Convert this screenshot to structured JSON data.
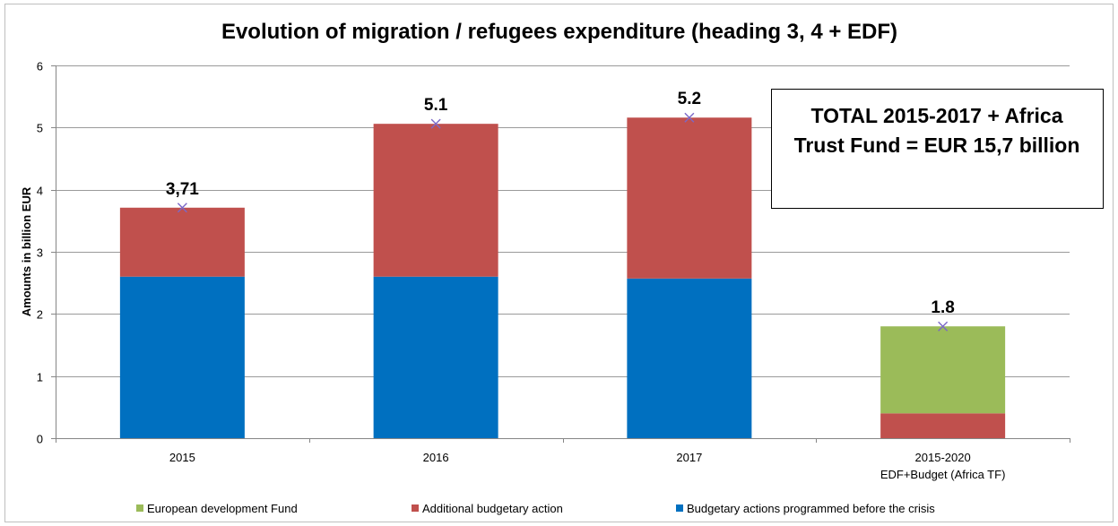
{
  "chart_data": {
    "type": "bar",
    "stacked": true,
    "title": "Evolution of migration / refugees expenditure (heading 3, 4 + EDF)",
    "ylabel": "Amounts in billion EUR",
    "xlabel": "",
    "ylim": [
      0,
      6
    ],
    "yticks": [
      "0",
      "1",
      "2",
      "3",
      "4",
      "5",
      "6"
    ],
    "grid": true,
    "legend_position": "bottom",
    "categories": [
      "2015",
      "2016",
      "2017",
      "2015-2020"
    ],
    "category_sublabels": [
      "",
      "",
      "",
      "EDF+Budget (Africa TF)"
    ],
    "series": [
      {
        "name": "Budgetary actions programmed before the crisis",
        "color": "#0070C0",
        "values": [
          2.6,
          2.6,
          2.57,
          0
        ]
      },
      {
        "name": "Additional budgetary action",
        "color": "#C0504D",
        "values": [
          1.11,
          2.46,
          2.59,
          0.4
        ]
      },
      {
        "name": "European development Fund",
        "color": "#9BBB59",
        "values": [
          0,
          0,
          0,
          1.4
        ]
      }
    ],
    "totals": [
      3.71,
      5.06,
      5.16,
      1.8
    ],
    "data_labels": [
      "3,71",
      "5.1",
      "5.2",
      "1.8"
    ],
    "legend_order": [
      "European development Fund",
      "Additional budgetary action",
      "Budgetary actions programmed before the crisis"
    ],
    "annotation": {
      "line1": "TOTAL 2015-2017 + Africa",
      "line2": "Trust Fund = EUR 15,7 billion"
    },
    "marker_color": "#7B68C8"
  }
}
